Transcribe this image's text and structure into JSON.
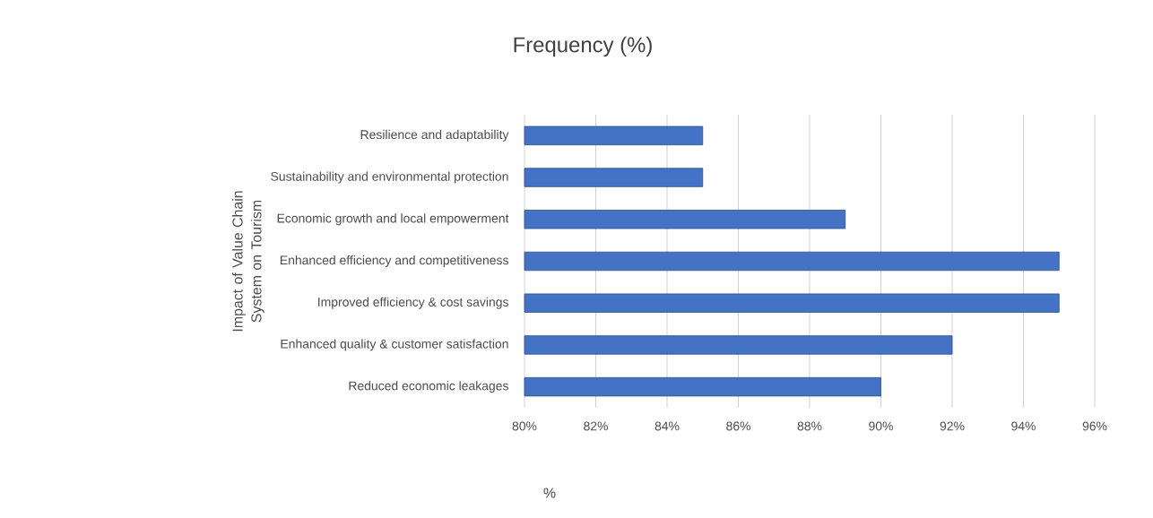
{
  "chart_data": {
    "type": "bar",
    "orientation": "horizontal",
    "title": "Frequency (%)",
    "xlabel": "%",
    "ylabel": "Impact of Value Chain System on Tourism",
    "categories": [
      "Resilience and adaptability",
      "Sustainability and environmental protection",
      "Economic growth and local empowerment",
      "Enhanced efficiency and competitiveness",
      "Improved efficiency & cost savings",
      "Enhanced quality & customer satisfaction",
      "Reduced economic leakages"
    ],
    "values": [
      85,
      85,
      89,
      95,
      95,
      92,
      90
    ],
    "color": "#4472c4",
    "xlim": [
      80,
      96
    ],
    "xticks": [
      {
        "value": 80,
        "label": "80%"
      },
      {
        "value": 82,
        "label": "82%"
      },
      {
        "value": 84,
        "label": "84%"
      },
      {
        "value": 86,
        "label": "86%"
      },
      {
        "value": 88,
        "label": "88%"
      },
      {
        "value": 90,
        "label": "90%"
      },
      {
        "value": 92,
        "label": "92%"
      },
      {
        "value": 94,
        "label": "94%"
      },
      {
        "value": 96,
        "label": "96%"
      }
    ],
    "grid": "x"
  }
}
